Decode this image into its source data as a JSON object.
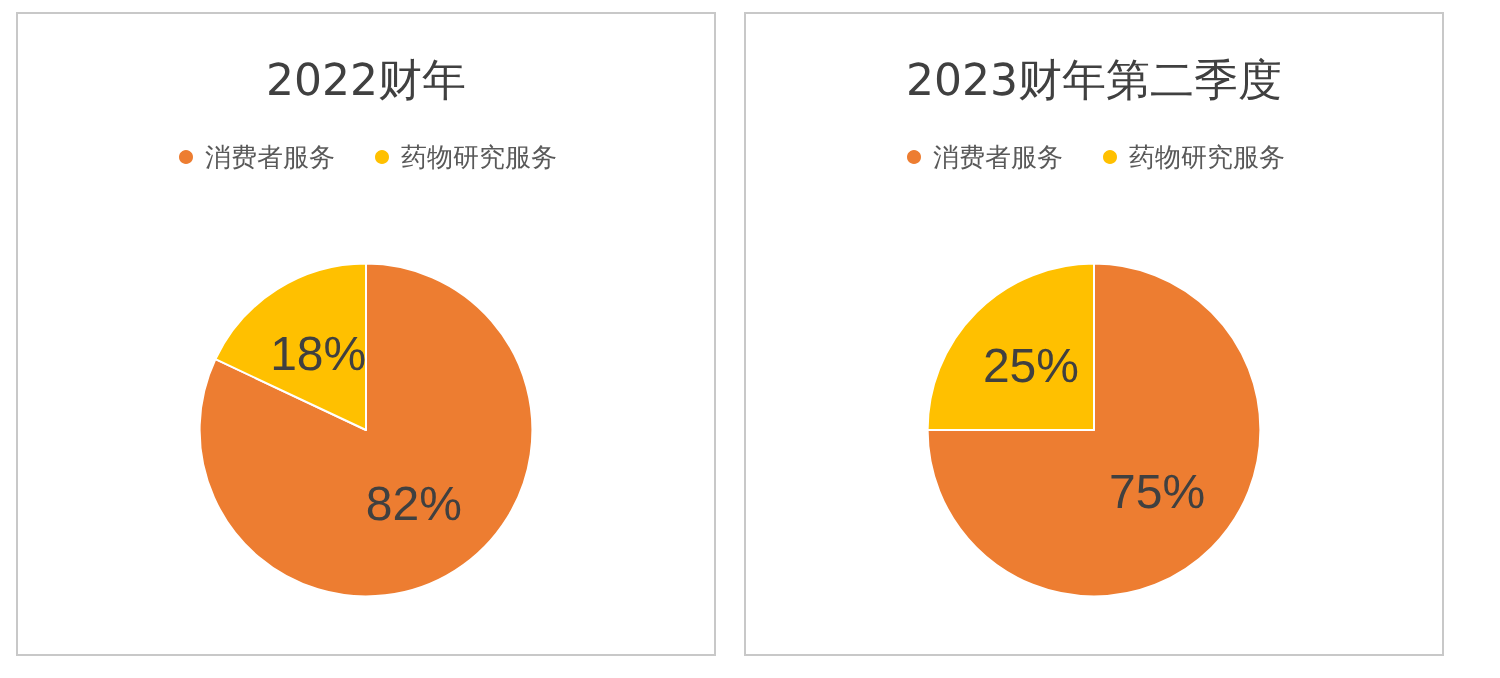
{
  "chart_data": [
    {
      "type": "pie",
      "title": "2022财年",
      "categories": [
        "消费者服务",
        "药物研究服务"
      ],
      "values": [
        82,
        18
      ],
      "colors": [
        "#ed7d31",
        "#ffc000"
      ],
      "value_labels": [
        "82%",
        "18%"
      ],
      "legend": "top"
    },
    {
      "type": "pie",
      "title": "2023财年第二季度",
      "categories": [
        "消费者服务",
        "药物研究服务"
      ],
      "values": [
        75,
        25
      ],
      "colors": [
        "#ed7d31",
        "#ffc000"
      ],
      "value_labels": [
        "75%",
        "25%"
      ],
      "legend": "top"
    }
  ]
}
